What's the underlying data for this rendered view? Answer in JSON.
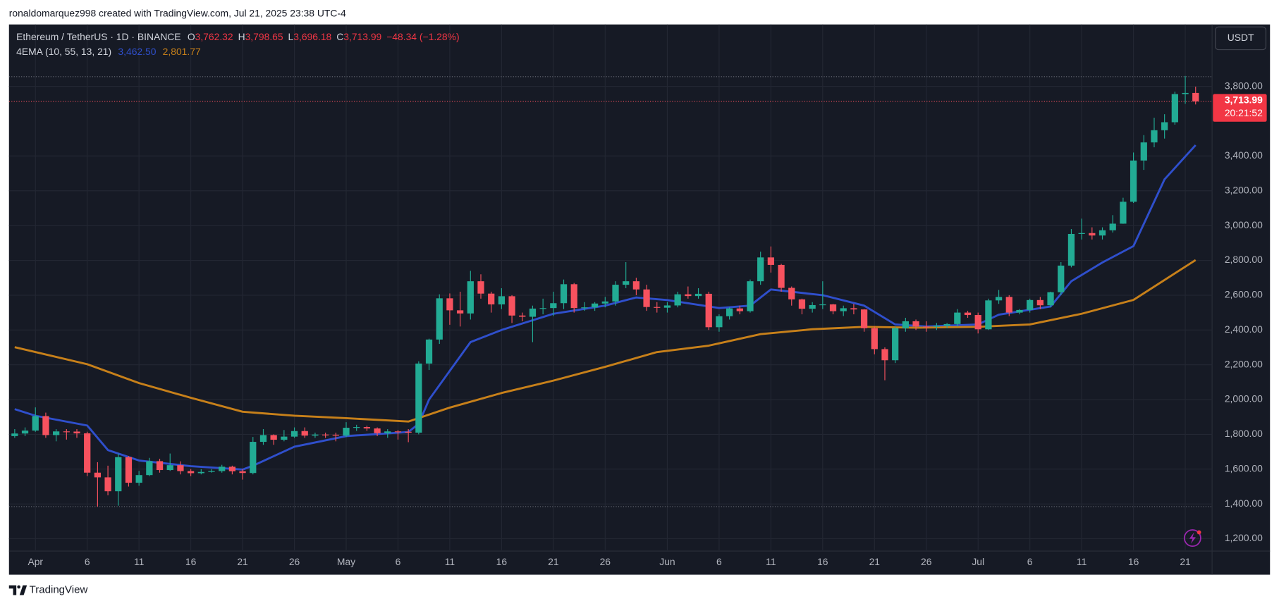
{
  "header": {
    "attribution": "ronaldomarquez998 created with TradingView.com, Jul 21, 2025 23:38 UTC-4"
  },
  "footer": {
    "brand": "TradingView"
  },
  "currency_button": "USDT",
  "chart_data": {
    "type": "candlestick",
    "legend": {
      "symbol": "Ethereum / TetherUS · 1D · BINANCE",
      "fields": [
        {
          "label": "O",
          "value": "3,762.32"
        },
        {
          "label": "H",
          "value": "3,798.65"
        },
        {
          "label": "L",
          "value": "3,696.18"
        },
        {
          "label": "C",
          "value": "3,713.99"
        }
      ],
      "change": "−48.34 (−1.28%)",
      "indicator": "4EMA (10, 55, 13, 21)",
      "indicator_values": [
        "3,462.50",
        "2,801.77"
      ]
    },
    "categories": [
      "Mar 30",
      "Mar 31",
      "Apr 1",
      "Apr 2",
      "Apr 3",
      "Apr 4",
      "Apr 5",
      "Apr 6",
      "Apr 7",
      "Apr 8",
      "Apr 9",
      "Apr 10",
      "Apr 11",
      "Apr 12",
      "Apr 13",
      "Apr 14",
      "Apr 15",
      "Apr 16",
      "Apr 17",
      "Apr 18",
      "Apr 19",
      "Apr 20",
      "Apr 21",
      "Apr 22",
      "Apr 23",
      "Apr 24",
      "Apr 25",
      "Apr 26",
      "Apr 27",
      "Apr 28",
      "Apr 29",
      "Apr 30",
      "May 1",
      "May 2",
      "May 3",
      "May 4",
      "May 5",
      "May 6",
      "May 7",
      "May 8",
      "May 9",
      "May 10",
      "May 11",
      "May 12",
      "May 13",
      "May 14",
      "May 15",
      "May 16",
      "May 17",
      "May 18",
      "May 19",
      "May 20",
      "May 21",
      "May 22",
      "May 23",
      "May 24",
      "May 25",
      "May 26",
      "May 27",
      "May 28",
      "May 29",
      "May 30",
      "May 31",
      "Jun 1",
      "Jun 2",
      "Jun 3",
      "Jun 4",
      "Jun 5",
      "Jun 6",
      "Jun 7",
      "Jun 8",
      "Jun 9",
      "Jun 10",
      "Jun 11",
      "Jun 12",
      "Jun 13",
      "Jun 14",
      "Jun 15",
      "Jun 16",
      "Jun 17",
      "Jun 18",
      "Jun 19",
      "Jun 20",
      "Jun 21",
      "Jun 22",
      "Jun 23",
      "Jun 24",
      "Jun 25",
      "Jun 26",
      "Jun 27",
      "Jun 28",
      "Jun 29",
      "Jun 30",
      "Jul 1",
      "Jul 2",
      "Jul 3",
      "Jul 4",
      "Jul 5",
      "Jul 6",
      "Jul 7",
      "Jul 8",
      "Jul 9",
      "Jul 10",
      "Jul 11",
      "Jul 12",
      "Jul 13",
      "Jul 14",
      "Jul 15",
      "Jul 16",
      "Jul 17",
      "Jul 18",
      "Jul 19",
      "Jul 20",
      "Jul 21",
      "Jul 22"
    ],
    "ohlc": {
      "open": [
        1790,
        1805,
        1822,
        1905,
        1796,
        1817,
        1816,
        1806,
        1580,
        1553,
        1473,
        1669,
        1522,
        1566,
        1646,
        1595,
        1623,
        1589,
        1577,
        1584,
        1589,
        1614,
        1588,
        1578,
        1757,
        1796,
        1769,
        1787,
        1819,
        1793,
        1799,
        1798,
        1793,
        1838,
        1842,
        1834,
        1807,
        1817,
        1815,
        1810,
        2207,
        2345,
        2582,
        2513,
        2495,
        2680,
        2609,
        2547,
        2594,
        2483,
        2476,
        2523,
        2526,
        2554,
        2663,
        2526,
        2530,
        2552,
        2564,
        2660,
        2680,
        2633,
        2532,
        2528,
        2541,
        2605,
        2595,
        2608,
        2416,
        2479,
        2524,
        2508,
        2680,
        2817,
        2774,
        2642,
        2576,
        2522,
        2543,
        2547,
        2508,
        2525,
        2518,
        2410,
        2290,
        2226,
        2410,
        2450,
        2420,
        2418,
        2424,
        2434,
        2500,
        2486,
        2404,
        2570,
        2590,
        2500,
        2515,
        2572,
        2542,
        2617,
        2770,
        2952,
        2957,
        2943,
        2973,
        3011,
        3137,
        3374,
        3478,
        3548,
        3594,
        3756,
        3762.32
      ],
      "high": [
        1830,
        1840,
        1955,
        1925,
        1830,
        1830,
        1830,
        1815,
        1640,
        1620,
        1690,
        1675,
        1590,
        1665,
        1660,
        1690,
        1645,
        1600,
        1600,
        1600,
        1625,
        1620,
        1600,
        1785,
        1830,
        1800,
        1825,
        1840,
        1840,
        1810,
        1810,
        1810,
        1870,
        1855,
        1850,
        1840,
        1830,
        1825,
        1830,
        2220,
        2350,
        2605,
        2610,
        2620,
        2740,
        2720,
        2620,
        2640,
        2600,
        2500,
        2540,
        2580,
        2620,
        2690,
        2670,
        2560,
        2560,
        2590,
        2680,
        2790,
        2700,
        2660,
        2560,
        2560,
        2620,
        2650,
        2640,
        2620,
        2490,
        2530,
        2540,
        2690,
        2850,
        2880,
        2780,
        2650,
        2580,
        2560,
        2680,
        2550,
        2540,
        2550,
        2520,
        2420,
        2300,
        2420,
        2470,
        2460,
        2450,
        2440,
        2440,
        2520,
        2510,
        2500,
        2580,
        2630,
        2600,
        2520,
        2580,
        2590,
        2620,
        2790,
        2980,
        3040,
        2990,
        2990,
        3060,
        3160,
        3420,
        3520,
        3620,
        3640,
        3770,
        3860,
        3798.65
      ],
      "low": [
        1780,
        1790,
        1815,
        1780,
        1760,
        1770,
        1780,
        1560,
        1385,
        1450,
        1390,
        1500,
        1505,
        1560,
        1580,
        1590,
        1570,
        1560,
        1570,
        1580,
        1580,
        1570,
        1540,
        1570,
        1740,
        1740,
        1760,
        1780,
        1780,
        1780,
        1780,
        1760,
        1785,
        1820,
        1820,
        1790,
        1780,
        1770,
        1755,
        1800,
        2170,
        2320,
        2430,
        2420,
        2460,
        2580,
        2500,
        2520,
        2440,
        2450,
        2330,
        2490,
        2480,
        2520,
        2500,
        2510,
        2510,
        2530,
        2540,
        2640,
        2600,
        2510,
        2500,
        2500,
        2530,
        2580,
        2580,
        2400,
        2390,
        2460,
        2490,
        2500,
        2660,
        2730,
        2620,
        2540,
        2490,
        2500,
        2520,
        2490,
        2480,
        2490,
        2390,
        2260,
        2111,
        2210,
        2390,
        2400,
        2390,
        2400,
        2410,
        2420,
        2470,
        2380,
        2400,
        2550,
        2480,
        2490,
        2500,
        2520,
        2530,
        2600,
        2760,
        2920,
        2920,
        2920,
        2960,
        3010,
        3130,
        3320,
        3450,
        3500,
        3580,
        3700,
        3696.18
      ],
      "close": [
        1805,
        1822,
        1905,
        1796,
        1817,
        1816,
        1806,
        1580,
        1553,
        1473,
        1669,
        1522,
        1566,
        1646,
        1595,
        1623,
        1589,
        1577,
        1584,
        1589,
        1614,
        1588,
        1578,
        1757,
        1796,
        1769,
        1787,
        1819,
        1793,
        1799,
        1798,
        1793,
        1838,
        1842,
        1834,
        1807,
        1817,
        1815,
        1810,
        2207,
        2345,
        2582,
        2513,
        2495,
        2680,
        2609,
        2547,
        2594,
        2483,
        2476,
        2523,
        2526,
        2554,
        2663,
        2526,
        2530,
        2552,
        2564,
        2660,
        2680,
        2633,
        2532,
        2528,
        2541,
        2605,
        2595,
        2608,
        2416,
        2479,
        2524,
        2508,
        2680,
        2817,
        2774,
        2642,
        2576,
        2522,
        2543,
        2547,
        2508,
        2525,
        2518,
        2410,
        2290,
        2226,
        2410,
        2450,
        2420,
        2418,
        2424,
        2434,
        2500,
        2486,
        2404,
        2570,
        2590,
        2500,
        2515,
        2572,
        2542,
        2617,
        2770,
        2952,
        2957,
        2943,
        2973,
        3011,
        3137,
        3374,
        3478,
        3548,
        3594,
        3756,
        3762.32,
        3713.99
      ]
    },
    "up_color": "#22ab94",
    "down_color": "#f7525f",
    "lines": [
      {
        "color": "#2f4fcc",
        "x": [
          "Mar 30",
          "Apr 1",
          "Apr 6",
          "Apr 8",
          "Apr 11",
          "Apr 16",
          "Apr 21",
          "Apr 22",
          "Apr 26",
          "May 1",
          "May 7",
          "May 8",
          "May 9",
          "May 11",
          "May 13",
          "May 16",
          "May 21",
          "May 26",
          "May 29",
          "Jun 1",
          "Jun 6",
          "Jun 9",
          "Jun 11",
          "Jun 16",
          "Jun 20",
          "Jun 23",
          "Jun 26",
          "Jul 1",
          "Jul 3",
          "Jul 8",
          "Jul 10",
          "Jul 13",
          "Jul 16",
          "Jul 19",
          "Jul 22"
        ],
        "values": [
          1945,
          1907,
          1851,
          1710,
          1650,
          1617,
          1598,
          1620,
          1729,
          1790,
          1814,
          1860,
          2000,
          2165,
          2330,
          2400,
          2493,
          2540,
          2587,
          2572,
          2526,
          2540,
          2633,
          2600,
          2540,
          2432,
          2420,
          2432,
          2488,
          2535,
          2680,
          2788,
          2882,
          3266,
          3462.5
        ]
      },
      {
        "color": "#c7801a",
        "x": [
          "Mar 30",
          "Apr 6",
          "Apr 11",
          "Apr 16",
          "Apr 21",
          "Apr 26",
          "May 1",
          "May 7",
          "May 11",
          "May 16",
          "May 21",
          "May 26",
          "May 31",
          "Jun 5",
          "Jun 10",
          "Jun 15",
          "Jun 20",
          "Jun 25",
          "Jul 1",
          "Jul 6",
          "Jul 11",
          "Jul 16",
          "Jul 22"
        ],
        "values": [
          2301,
          2203,
          2095,
          2010,
          1930,
          1907,
          1893,
          1874,
          1954,
          2038,
          2109,
          2188,
          2273,
          2310,
          2376,
          2404,
          2418,
          2413,
          2418,
          2432,
          2493,
          2573,
          2801.77
        ]
      }
    ],
    "ylim": [
      1134,
      4156
    ],
    "yticks": [
      {
        "value": 1200,
        "label": "1,200.00"
      },
      {
        "value": 1400,
        "label": "1,400.00"
      },
      {
        "value": 1600,
        "label": "1,600.00"
      },
      {
        "value": 1800,
        "label": "1,800.00"
      },
      {
        "value": 2000,
        "label": "2,000.00"
      },
      {
        "value": 2200,
        "label": "2,200.00"
      },
      {
        "value": 2400,
        "label": "2,400.00"
      },
      {
        "value": 2600,
        "label": "2,600.00"
      },
      {
        "value": 2800,
        "label": "2,800.00"
      },
      {
        "value": 3000,
        "label": "3,000.00"
      },
      {
        "value": 3200,
        "label": "3,200.00"
      },
      {
        "value": 3400,
        "label": "3,400.00"
      },
      {
        "value": 3800,
        "label": "3,800.00"
      }
    ],
    "xticks": [
      {
        "value": "Apr 1",
        "label": "Apr"
      },
      {
        "value": "Apr 6",
        "label": "6"
      },
      {
        "value": "Apr 11",
        "label": "11"
      },
      {
        "value": "Apr 16",
        "label": "16"
      },
      {
        "value": "Apr 21",
        "label": "21"
      },
      {
        "value": "Apr 26",
        "label": "26"
      },
      {
        "value": "May 1",
        "label": "May"
      },
      {
        "value": "May 6",
        "label": "6"
      },
      {
        "value": "May 11",
        "label": "11"
      },
      {
        "value": "May 16",
        "label": "16"
      },
      {
        "value": "May 21",
        "label": "21"
      },
      {
        "value": "May 26",
        "label": "26"
      },
      {
        "value": "Jun 1",
        "label": "Jun"
      },
      {
        "value": "Jun 6",
        "label": "6"
      },
      {
        "value": "Jun 11",
        "label": "11"
      },
      {
        "value": "Jun 16",
        "label": "16"
      },
      {
        "value": "Jun 21",
        "label": "21"
      },
      {
        "value": "Jun 26",
        "label": "26"
      },
      {
        "value": "Jul 1",
        "label": "Jul"
      },
      {
        "value": "Jul 6",
        "label": "6"
      },
      {
        "value": "Jul 11",
        "label": "11"
      },
      {
        "value": "Jul 16",
        "label": "16"
      },
      {
        "value": "Jul 21",
        "label": "21"
      }
    ],
    "grid": true,
    "last_price_label": "3,713.99",
    "countdown": "20:21:52",
    "range_lines": [
      3856,
      1385
    ]
  }
}
